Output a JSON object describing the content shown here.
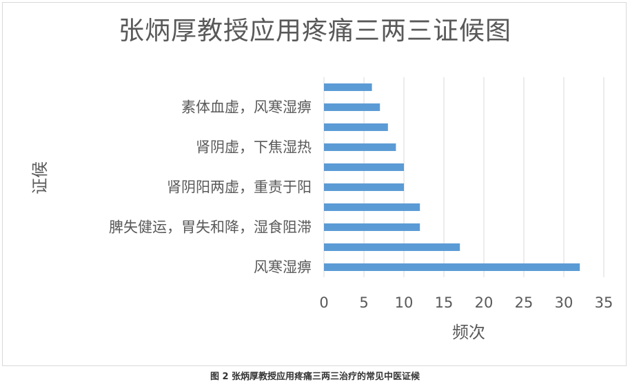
{
  "chart_data": {
    "type": "bar",
    "orientation": "horizontal",
    "title": "张炳厚教授应用疼痛三两三证候图",
    "xlabel": "频次",
    "ylabel": "证候",
    "xlim": [
      0,
      35
    ],
    "xticks": [
      0,
      5,
      10,
      15,
      20,
      25,
      30,
      35
    ],
    "grid": "vertical",
    "legend": "none",
    "bar_color": "#5b9bd5",
    "categories": [
      "",
      "素体血虚，风寒湿痹",
      "",
      "肾阴虚，下焦湿热",
      "",
      "肾阴阳两虚，重责于阳",
      "",
      "脾失健运，胃失和降，湿食阻滞",
      "",
      "风寒湿痹"
    ],
    "values": [
      6,
      7,
      8,
      9,
      10,
      10,
      12,
      12,
      17,
      32
    ]
  },
  "caption": "图 2 张炳厚教授应用疼痛三两三治疗的常见中医证候"
}
